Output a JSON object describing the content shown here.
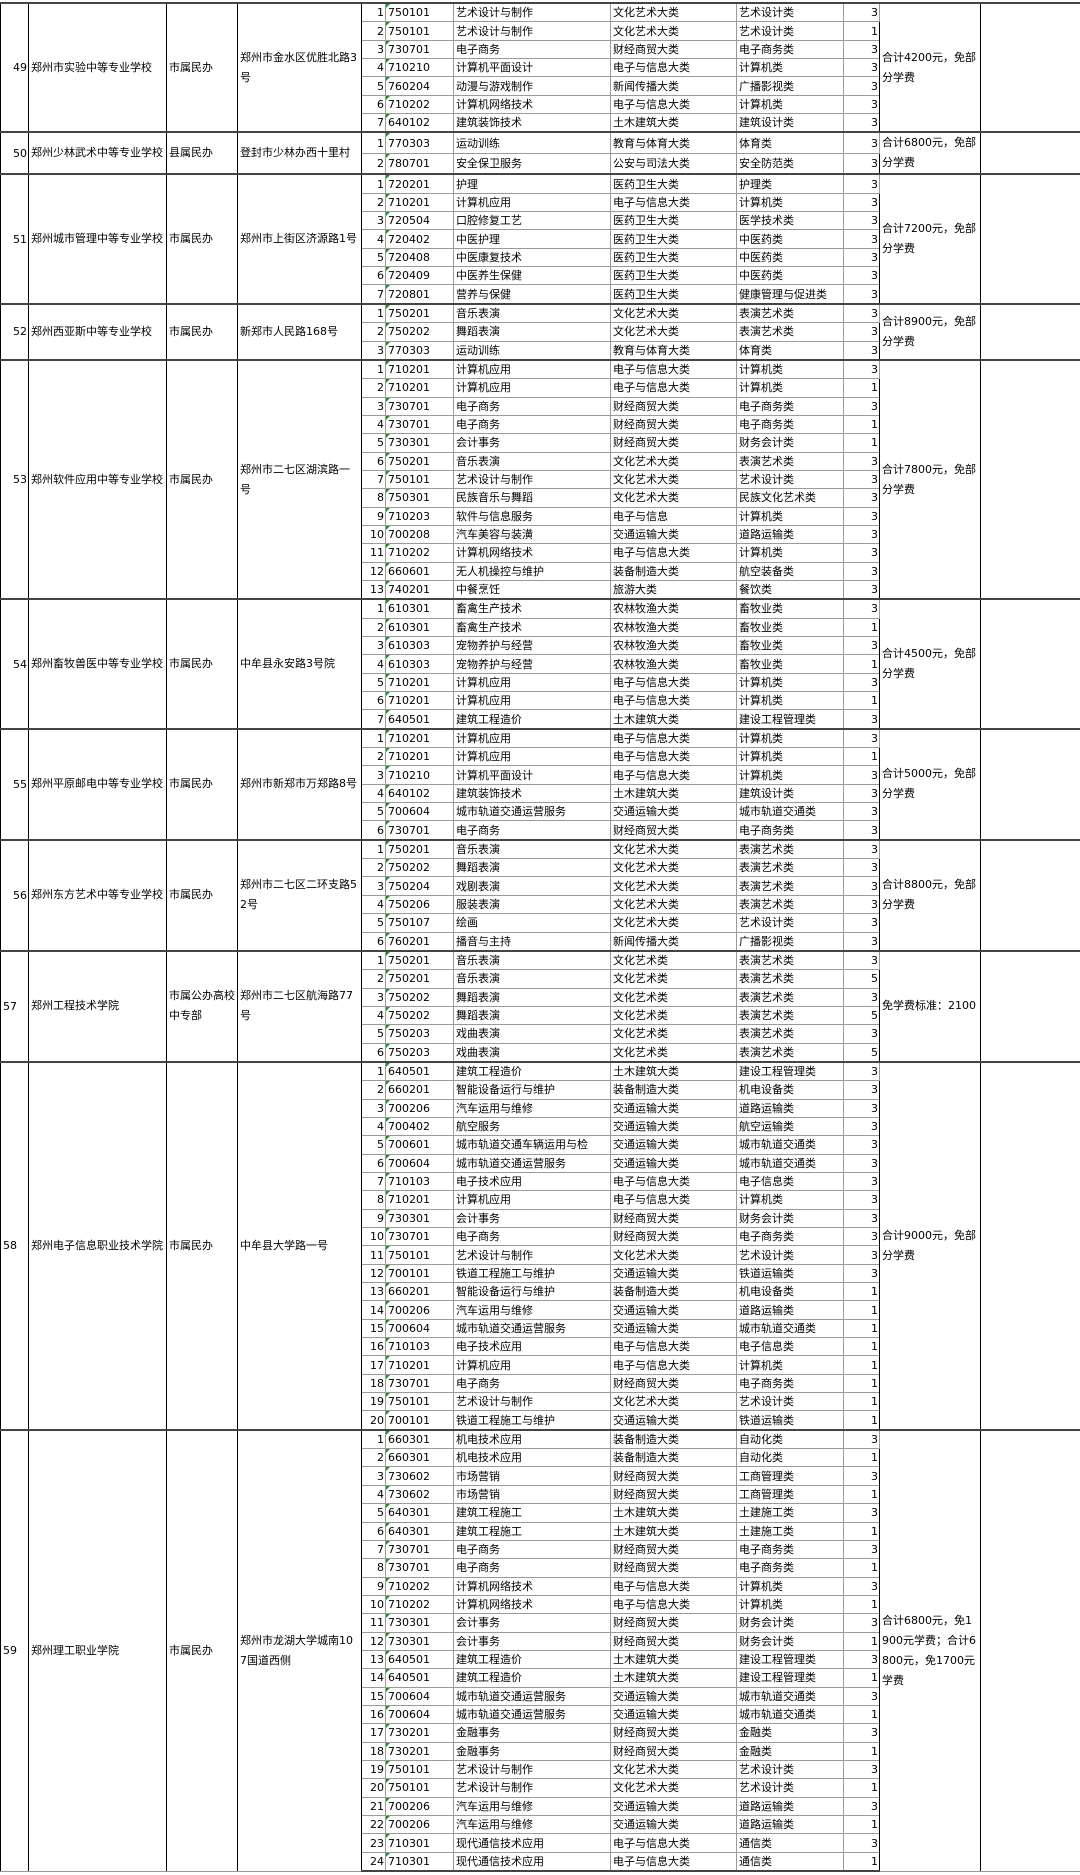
{
  "groups": [
    {
      "no": "49",
      "school": "郑州市实验中等专业学校",
      "type": "市属民办",
      "address": "郑州市金水区优胜北路3号",
      "fee": "合计4200元，免部分学费",
      "rows": [
        [
          "1",
          "750101",
          "艺术设计与制作",
          "文化艺术大类",
          "艺术设计类",
          "3"
        ],
        [
          "2",
          "750101",
          "艺术设计与制作",
          "文化艺术大类",
          "艺术设计类",
          "1"
        ],
        [
          "3",
          "730701",
          "电子商务",
          "财经商贸大类",
          "电子商务类",
          "3"
        ],
        [
          "4",
          "710210",
          "计算机平面设计",
          "电子与信息大类",
          "计算机类",
          "3"
        ],
        [
          "5",
          "760204",
          "动漫与游戏制作",
          "新闻传播大类",
          "广播影视类",
          "3"
        ],
        [
          "6",
          "710202",
          "计算机网络技术",
          "电子与信息大类",
          "计算机类",
          "3"
        ],
        [
          "7",
          "640102",
          "建筑装饰技术",
          "土木建筑大类",
          "建筑设计类",
          "3"
        ]
      ]
    },
    {
      "no": "50",
      "school": "郑州少林武术中等专业学校",
      "type": "县属民办",
      "address": "登封市少林办西十里村",
      "fee": "合计6800元，免部分学费",
      "rows": [
        [
          "1",
          "770303",
          "运动训练",
          "教育与体育大类",
          "体育类",
          "3"
        ],
        [
          "2",
          "780701",
          "安全保卫服务",
          "公安与司法大类",
          "安全防范类",
          "3"
        ]
      ]
    },
    {
      "no": "51",
      "school": "郑州城市管理中等专业学校",
      "type": "市属民办",
      "address": "郑州市上街区济源路1号",
      "fee": "合计7200元，免部分学费",
      "rows": [
        [
          "1",
          "720201",
          "护理",
          "医药卫生大类",
          "护理类",
          "3"
        ],
        [
          "2",
          "710201",
          "计算机应用",
          "电子与信息大类",
          "计算机类",
          "3"
        ],
        [
          "3",
          "720504",
          "口腔修复工艺",
          "医药卫生大类",
          "医学技术类",
          "3"
        ],
        [
          "4",
          "720402",
          "中医护理",
          "医药卫生大类",
          "中医药类",
          "3"
        ],
        [
          "5",
          "720408",
          "中医康复技术",
          "医药卫生大类",
          "中医药类",
          "3"
        ],
        [
          "6",
          "720409",
          "中医养生保健",
          "医药卫生大类",
          "中医药类",
          "3"
        ],
        [
          "7",
          "720801",
          "营养与保健",
          "医药卫生大类",
          "健康管理与促进类",
          "3"
        ]
      ]
    },
    {
      "no": "52",
      "school": "郑州西亚斯中等专业学校",
      "type": "市属民办",
      "address": "新郑市人民路168号",
      "fee": "合计8900元，免部分学费",
      "rows": [
        [
          "1",
          "750201",
          "音乐表演",
          "文化艺术大类",
          "表演艺术类",
          "3"
        ],
        [
          "2",
          "750202",
          "舞蹈表演",
          "文化艺术大类",
          "表演艺术类",
          "3"
        ],
        [
          "3",
          "770303",
          "运动训练",
          "教育与体育大类",
          "体育类",
          "3"
        ]
      ]
    },
    {
      "no": "53",
      "school": "郑州软件应用中等专业学校",
      "type": "市属民办",
      "address": "郑州市二七区湖滨路一号",
      "fee": "合计7800元，免部分学费",
      "rows": [
        [
          "1",
          "710201",
          "计算机应用",
          "电子与信息大类",
          "计算机类",
          "3"
        ],
        [
          "2",
          "710201",
          "计算机应用",
          "电子与信息大类",
          "计算机类",
          "1"
        ],
        [
          "3",
          "730701",
          "电子商务",
          "财经商贸大类",
          "电子商务类",
          "3"
        ],
        [
          "4",
          "730701",
          "电子商务",
          "财经商贸大类",
          "电子商务类",
          "1"
        ],
        [
          "5",
          "730301",
          "会计事务",
          "财经商贸大类",
          "财务会计类",
          "1"
        ],
        [
          "6",
          "750201",
          "音乐表演",
          "文化艺术大类",
          "表演艺术类",
          "3"
        ],
        [
          "7",
          "750101",
          "艺术设计与制作",
          "文化艺术大类",
          "艺术设计类",
          "3"
        ],
        [
          "8",
          "750301",
          "民族音乐与舞蹈",
          "文化艺术大类",
          "民族文化艺术类",
          "3"
        ],
        [
          "9",
          "710203",
          "软件与信息服务",
          "电子与信息",
          "计算机类",
          "3"
        ],
        [
          "10",
          "700208",
          "汽车美容与装潢",
          "交通运输大类",
          "道路运输类",
          "3"
        ],
        [
          "11",
          "710202",
          "计算机网络技术",
          "电子与信息大类",
          "计算机类",
          "3"
        ],
        [
          "12",
          "660601",
          "无人机操控与维护",
          "装备制造大类",
          "航空装备类",
          "3"
        ],
        [
          "13",
          "740201",
          "中餐烹饪",
          "旅游大类",
          "餐饮类",
          "3"
        ]
      ]
    },
    {
      "no": "54",
      "school": "郑州畜牧兽医中等专业学校",
      "type": "市属民办",
      "address": "中牟县永安路3号院",
      "fee": "合计4500元，免部分学费",
      "rows": [
        [
          "1",
          "610301",
          "畜禽生产技术",
          "农林牧渔大类",
          "畜牧业类",
          "3"
        ],
        [
          "2",
          "610301",
          "畜禽生产技术",
          "农林牧渔大类",
          "畜牧业类",
          "1"
        ],
        [
          "3",
          "610303",
          "宠物养护与经营",
          "农林牧渔大类",
          "畜牧业类",
          "3"
        ],
        [
          "4",
          "610303",
          "宠物养护与经营",
          "农林牧渔大类",
          "畜牧业类",
          "1"
        ],
        [
          "5",
          "710201",
          "计算机应用",
          "电子与信息大类",
          "计算机类",
          "3"
        ],
        [
          "6",
          "710201",
          "计算机应用",
          "电子与信息大类",
          "计算机类",
          "1"
        ],
        [
          "7",
          "640501",
          "建筑工程造价",
          "土木建筑大类",
          "建设工程管理类",
          "3"
        ]
      ]
    },
    {
      "no": "55",
      "school": "郑州平原邮电中等专业学校",
      "type": "市属民办",
      "address": "郑州市新郑市万郑路8号",
      "fee": "合计5000元，免部分学费",
      "rows": [
        [
          "1",
          "710201",
          "计算机应用",
          "电子与信息大类",
          "计算机类",
          "3"
        ],
        [
          "2",
          "710201",
          "计算机应用",
          "电子与信息大类",
          "计算机类",
          "1"
        ],
        [
          "3",
          "710210",
          "计算机平面设计",
          "电子与信息大类",
          "计算机类",
          "3"
        ],
        [
          "4",
          "640102",
          "建筑装饰技术",
          "土木建筑大类",
          "建筑设计类",
          "3"
        ],
        [
          "5",
          "700604",
          "城市轨道交通运营服务",
          "交通运输大类",
          "城市轨道交通类",
          "3"
        ],
        [
          "6",
          "730701",
          "电子商务",
          "财经商贸大类",
          "电子商务类",
          "3"
        ]
      ]
    },
    {
      "no": "56",
      "school": "郑州东方艺术中等专业学校",
      "type": "市属民办",
      "address": "郑州市二七区二环支路52号",
      "fee": "合计8800元，免部分学费",
      "rows": [
        [
          "1",
          "750201",
          "音乐表演",
          "文化艺术大类",
          "表演艺术类",
          "3"
        ],
        [
          "2",
          "750202",
          "舞蹈表演",
          "文化艺术大类",
          "表演艺术类",
          "3"
        ],
        [
          "3",
          "750204",
          "戏剧表演",
          "文化艺术大类",
          "表演艺术类",
          "3"
        ],
        [
          "4",
          "750206",
          "服装表演",
          "文化艺术大类",
          "表演艺术类",
          "3"
        ],
        [
          "5",
          "750107",
          "绘画",
          "文化艺术大类",
          "艺术设计类",
          "3"
        ],
        [
          "6",
          "760201",
          "播音与主持",
          "新闻传播大类",
          "广播影视类",
          "3"
        ]
      ]
    },
    {
      "no": "57",
      "school": "郑州工程技术学院",
      "type": "市属公办高校中专部",
      "address": "郑州市二七区航海路77号",
      "fee": "免学费标准：2100",
      "rows": [
        [
          "1",
          "750201",
          "音乐表演",
          "文化艺术类",
          "表演艺术类",
          "3"
        ],
        [
          "2",
          "750201",
          "音乐表演",
          "文化艺术类",
          "表演艺术类",
          "5"
        ],
        [
          "3",
          "750202",
          "舞蹈表演",
          "文化艺术类",
          "表演艺术类",
          "3"
        ],
        [
          "4",
          "750202",
          "舞蹈表演",
          "文化艺术类",
          "表演艺术类",
          "5"
        ],
        [
          "5",
          "750203",
          "戏曲表演",
          "文化艺术类",
          "表演艺术类",
          "3"
        ],
        [
          "6",
          "750203",
          "戏曲表演",
          "文化艺术类",
          "表演艺术类",
          "5"
        ]
      ]
    },
    {
      "no": "58",
      "school": "郑州电子信息职业技术学院",
      "type": "市属民办",
      "address": "中牟县大学路一号",
      "fee": "合计9000元，免部分学费",
      "rows": [
        [
          "1",
          "640501",
          "建筑工程造价",
          "土木建筑大类",
          "建设工程管理类",
          "3"
        ],
        [
          "2",
          "660201",
          "智能设备运行与维护",
          "装备制造大类",
          "机电设备类",
          "3"
        ],
        [
          "3",
          "700206",
          "汽车运用与维修",
          "交通运输大类",
          "道路运输类",
          "3"
        ],
        [
          "4",
          "700402",
          "航空服务",
          "交通运输大类",
          "航空运输类",
          "3"
        ],
        [
          "5",
          "700601",
          "城市轨道交通车辆运用与检",
          "交通运输大类",
          "城市轨道交通类",
          "3"
        ],
        [
          "6",
          "700604",
          "城市轨道交通运营服务",
          "交通运输大类",
          "城市轨道交通类",
          "3"
        ],
        [
          "7",
          "710103",
          "电子技术应用",
          "电子与信息大类",
          "电子信息类",
          "3"
        ],
        [
          "8",
          "710201",
          "计算机应用",
          "电子与信息大类",
          "计算机类",
          "3"
        ],
        [
          "9",
          "730301",
          "会计事务",
          "财经商贸大类",
          "财务会计类",
          "3"
        ],
        [
          "10",
          "730701",
          "电子商务",
          "财经商贸大类",
          "电子商务类",
          "3"
        ],
        [
          "11",
          "750101",
          "艺术设计与制作",
          "文化艺术大类",
          "艺术设计类",
          "3"
        ],
        [
          "12",
          "700101",
          "铁道工程施工与维护",
          "交通运输大类",
          "铁道运输类",
          "3"
        ],
        [
          "13",
          "660201",
          "智能设备运行与维护",
          "装备制造大类",
          "机电设备类",
          "1"
        ],
        [
          "14",
          "700206",
          "汽车运用与维修",
          "交通运输大类",
          "道路运输类",
          "1"
        ],
        [
          "15",
          "700604",
          "城市轨道交通运营服务",
          "交通运输大类",
          "城市轨道交通类",
          "1"
        ],
        [
          "16",
          "710103",
          "电子技术应用",
          "电子与信息大类",
          "电子信息类",
          "1"
        ],
        [
          "17",
          "710201",
          "计算机应用",
          "电子与信息大类",
          "计算机类",
          "1"
        ],
        [
          "18",
          "730701",
          "电子商务",
          "财经商贸大类",
          "电子商务类",
          "1"
        ],
        [
          "19",
          "750101",
          "艺术设计与制作",
          "文化艺术大类",
          "艺术设计类",
          "1"
        ],
        [
          "20",
          "700101",
          "铁道工程施工与维护",
          "交通运输大类",
          "铁道运输类",
          "1"
        ]
      ]
    },
    {
      "no": "59",
      "school": "郑州理工职业学院",
      "type": "市属民办",
      "address": "郑州市龙湖大学城南107国道西侧",
      "fee": "合计6800元，免1900元学费；合计6800元，免1700元学费",
      "rows": [
        [
          "1",
          "660301",
          "机电技术应用",
          "装备制造大类",
          "自动化类",
          "3"
        ],
        [
          "2",
          "660301",
          "机电技术应用",
          "装备制造大类",
          "自动化类",
          "1"
        ],
        [
          "3",
          "730602",
          "市场营销",
          "财经商贸大类",
          "工商管理类",
          "3"
        ],
        [
          "4",
          "730602",
          "市场营销",
          "财经商贸大类",
          "工商管理类",
          "1"
        ],
        [
          "5",
          "640301",
          "建筑工程施工",
          "土木建筑大类",
          "土建施工类",
          "3"
        ],
        [
          "6",
          "640301",
          "建筑工程施工",
          "土木建筑大类",
          "土建施工类",
          "1"
        ],
        [
          "7",
          "730701",
          "电子商务",
          "财经商贸大类",
          "电子商务类",
          "3"
        ],
        [
          "8",
          "730701",
          "电子商务",
          "财经商贸大类",
          "电子商务类",
          "1"
        ],
        [
          "9",
          "710202",
          "计算机网络技术",
          "电子与信息大类",
          "计算机类",
          "3"
        ],
        [
          "10",
          "710202",
          "计算机网络技术",
          "电子与信息大类",
          "计算机类",
          "1"
        ],
        [
          "11",
          "730301",
          "会计事务",
          "财经商贸大类",
          "财务会计类",
          "3"
        ],
        [
          "12",
          "730301",
          "会计事务",
          "财经商贸大类",
          "财务会计类",
          "1"
        ],
        [
          "13",
          "640501",
          "建筑工程造价",
          "土木建筑大类",
          "建设工程管理类",
          "3"
        ],
        [
          "14",
          "640501",
          "建筑工程造价",
          "土木建筑大类",
          "建设工程管理类",
          "1"
        ],
        [
          "15",
          "700604",
          "城市轨道交通运营服务",
          "交通运输大类",
          "城市轨道交通类",
          "3"
        ],
        [
          "16",
          "700604",
          "城市轨道交通运营服务",
          "交通运输大类",
          "城市轨道交通类",
          "1"
        ],
        [
          "17",
          "730201",
          "金融事务",
          "财经商贸大类",
          "金融类",
          "3"
        ],
        [
          "18",
          "730201",
          "金融事务",
          "财经商贸大类",
          "金融类",
          "1"
        ],
        [
          "19",
          "750101",
          "艺术设计与制作",
          "文化艺术大类",
          "艺术设计类",
          "3"
        ],
        [
          "20",
          "750101",
          "艺术设计与制作",
          "文化艺术大类",
          "艺术设计类",
          "1"
        ],
        [
          "21",
          "700206",
          "汽车运用与维修",
          "交通运输大类",
          "道路运输类",
          "3"
        ],
        [
          "22",
          "700206",
          "汽车运用与维修",
          "交通运输大类",
          "道路运输类",
          "1"
        ],
        [
          "23",
          "710301",
          "现代通信技术应用",
          "电子与信息大类",
          "通信类",
          "3"
        ],
        [
          "24",
          "710301",
          "现代通信技术应用",
          "电子与信息大类",
          "通信类",
          "1"
        ]
      ]
    }
  ]
}
